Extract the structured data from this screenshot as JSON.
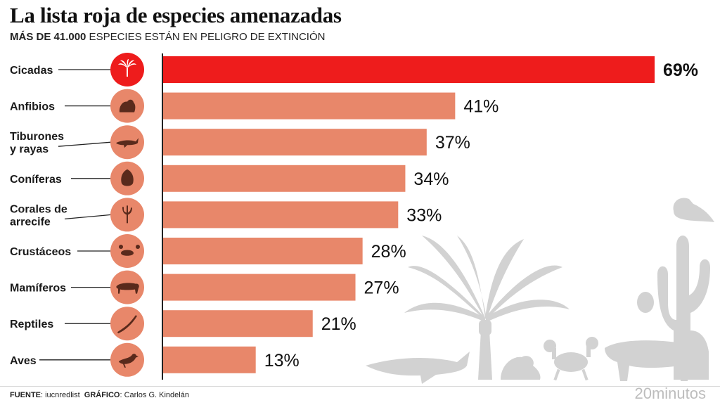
{
  "title": "La lista roja de especies amenazadas",
  "subtitle": {
    "bold": "MÁS DE 41.000",
    "rest": " ESPECIES ESTÁN EN PELIGRO DE EXTINCIÓN"
  },
  "footer": {
    "source_label": "FUENTE",
    "source_value": ": iucnredlist",
    "credit_label": "GRÁFICO",
    "credit_value": ": Carlos G. Kindelán"
  },
  "brand": "20minutos",
  "colors": {
    "highlight": "#ee1c1c",
    "bar": "#e8876a",
    "icon_bg": "#e8876a",
    "decoration": "#cfcfcf"
  },
  "chart_data": {
    "type": "bar",
    "orientation": "horizontal",
    "categories": [
      "Cicadas",
      "Anfibios",
      "Tiburones y rayas",
      "Coníferas",
      "Corales de arrecife",
      "Crustáceos",
      "Mamíferos",
      "Reptiles",
      "Aves"
    ],
    "category_lines": [
      [
        "Cicadas"
      ],
      [
        "Anfibios"
      ],
      [
        "Tiburones",
        "y rayas"
      ],
      [
        "Coníferas"
      ],
      [
        "Corales de",
        "arrecife"
      ],
      [
        "Crustáceos"
      ],
      [
        "Mamíferos"
      ],
      [
        "Reptiles"
      ],
      [
        "Aves"
      ]
    ],
    "values": [
      69,
      41,
      37,
      34,
      33,
      28,
      27,
      21,
      13
    ],
    "value_labels": [
      "69%",
      "41%",
      "37%",
      "34%",
      "33%",
      "28%",
      "27%",
      "21%",
      "13%"
    ],
    "icons": [
      "palm-icon",
      "frog-icon",
      "shark-icon",
      "pinecone-icon",
      "coral-icon",
      "crab-icon",
      "leopard-icon",
      "lizard-icon",
      "bird-icon"
    ],
    "highlight_index": 0,
    "unit": "%",
    "xlim": [
      0,
      69
    ]
  }
}
